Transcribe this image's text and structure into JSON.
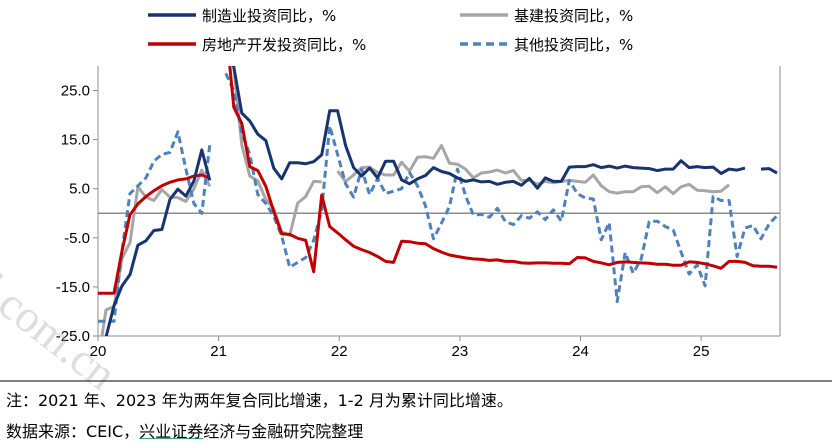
{
  "chart_data": {
    "type": "line",
    "ylim": [
      -25,
      30
    ],
    "y_ticks": [
      "25.0",
      "15.0",
      "5.0",
      "-5.0",
      "-15.0",
      "-25.0"
    ],
    "x_ticks": [
      "20",
      "21",
      "22",
      "23",
      "24",
      "25"
    ],
    "grid": false,
    "legend_position": "top",
    "series": [
      {
        "name": "制造业投资同比，%",
        "color": "#17346e",
        "style": "solid",
        "values": [
          -31.5,
          -25.2,
          -18.8,
          -14.8,
          -12.5,
          -6.5,
          -5.6,
          -3.5,
          -3.3,
          2.8,
          4.9,
          3.5,
          6.6,
          12.9,
          6.7,
          null,
          33.8,
          29.8,
          20.4,
          18.8,
          16.1,
          14.8,
          9.2,
          7.0,
          10.3,
          10.3,
          10.1,
          10.5,
          11.9,
          20.9,
          20.9,
          13.8,
          9.3,
          7.6,
          9.2,
          7.2,
          10.6,
          10.6,
          6.8,
          6.0,
          7.0,
          7.7,
          9.3,
          8.5,
          8.1,
          7.2,
          6.5,
          6.8,
          6.4,
          6.5,
          5.9,
          6.3,
          6.5,
          5.7,
          7.1,
          5.1,
          7.2,
          6.5,
          6.5,
          9.4,
          9.5,
          9.5,
          9.9,
          9.3,
          9.6,
          9.2,
          9.6,
          9.3,
          9.2,
          9.1,
          8.7,
          9.0,
          9.0,
          10.7,
          9.3,
          9.5,
          9.3,
          9.4,
          8.1,
          9.0,
          8.8,
          9.2,
          null,
          9.0,
          9.1,
          8.2
        ],
        "label": "legend.series_1"
      },
      {
        "name": "基建投资同比，%",
        "color": "#a6a6a6",
        "style": "solid",
        "values": [
          -30.3,
          -19.7,
          -19.0,
          -9.2,
          -6.0,
          5.4,
          3.3,
          2.6,
          4.8,
          3.3,
          3.2,
          2.4,
          5.0,
          8.8,
          5.5,
          null,
          33.8,
          29.8,
          13.9,
          7.6,
          6.6,
          2.8,
          1.0,
          -3.8,
          -4.5,
          2.1,
          3.4,
          6.5,
          6.4,
          null,
          8.6,
          6.5,
          7.8,
          9.3,
          9.4,
          8.3,
          7.8,
          7.8,
          10.4,
          8.6,
          11.4,
          11.5,
          11.2,
          13.8,
          10.2,
          10.0,
          9.0,
          7.2,
          8.2,
          8.4,
          8.8,
          8.2,
          8.7,
          6.7,
          6.7,
          5.9,
          6.5,
          6.2,
          6.5,
          6.7,
          6.5,
          6.3,
          7.8,
          5.6,
          4.4,
          4.1,
          4.4,
          4.4,
          5.4,
          5.5,
          4.2,
          5.4,
          4.0,
          5.4,
          5.9,
          4.7,
          4.6,
          4.4,
          4.5,
          5.8,
          null,
          null,
          null,
          null,
          null,
          null
        ],
        "label": "legend.series_2"
      },
      {
        "name": "房地产开发投资同比，%",
        "color": "#c00000",
        "style": "solid",
        "values": [
          -16.3,
          -16.3,
          -16.3,
          -7.7,
          -0.3,
          1.9,
          3.4,
          4.6,
          5.6,
          6.3,
          6.8,
          7.0,
          7.6,
          7.8,
          7.2,
          null,
          38.3,
          21.6,
          18.3,
          9.5,
          8.7,
          5.5,
          0.4,
          -4.2,
          -4.3,
          -5.1,
          -5.5,
          -11.9,
          3.7,
          -2.7,
          -4.0,
          -5.4,
          -6.7,
          -7.4,
          -8.0,
          -8.8,
          -9.8,
          -10.0,
          -5.7,
          -5.8,
          -6.1,
          -6.2,
          -7.2,
          -7.9,
          -8.5,
          -8.8,
          -9.1,
          -9.3,
          -9.4,
          -9.6,
          -9.5,
          -9.8,
          -9.8,
          -10.1,
          -10.2,
          -10.1,
          -10.1,
          -10.2,
          -10.2,
          -10.3,
          -9.0,
          -9.1,
          -9.8,
          -10.1,
          -10.5,
          -10.0,
          -9.9,
          -10.0,
          -10.1,
          -10.2,
          -10.4,
          -10.4,
          -10.6,
          -10.6,
          -9.9,
          -10.0,
          -10.3,
          -10.7,
          -11.2,
          -9.8,
          -9.8,
          -10.0,
          -10.7,
          -10.8,
          -10.8,
          -11.0
        ],
        "label": "legend.series_3"
      },
      {
        "name": "其他投资同比，%",
        "color": "#4f81bd",
        "style": "dashed",
        "values": [
          -22.0,
          -22.0,
          -22.0,
          -7.6,
          4.0,
          5.6,
          7.2,
          10.6,
          12.0,
          12.4,
          16.6,
          9.0,
          2.0,
          0.0,
          14.0,
          null,
          28.5,
          25.0,
          16.3,
          12.0,
          3.8,
          2.0,
          -0.6,
          -4.6,
          -11.0,
          -10.0,
          -9.0,
          -5.5,
          0.7,
          17.8,
          12.0,
          6.0,
          3.3,
          9.0,
          3.8,
          7.1,
          4.0,
          4.5,
          5.0,
          8.3,
          5.6,
          1.5,
          -5.2,
          -2.0,
          1.4,
          9.0,
          3.6,
          -0.4,
          -0.2,
          -0.8,
          1.0,
          -1.7,
          -2.3,
          -0.5,
          -1.0,
          0.3,
          -1.3,
          0.7,
          -1.6,
          6.7,
          4.0,
          3.1,
          2.9,
          -5.4,
          -1.9,
          -18.0,
          -8.0,
          -12.2,
          -9.3,
          -1.7,
          -1.6,
          -2.7,
          -3.4,
          -7.9,
          -12.4,
          -10.5,
          -14.8,
          3.4,
          2.6,
          2.6,
          -8.8,
          -3.0,
          -2.5,
          -5.2,
          -2.2,
          -0.5
        ],
        "label": "legend.series_4"
      }
    ]
  },
  "legend": {
    "series_1": "制造业投资同比，%",
    "series_2": "基建投资同比，%",
    "series_3": "房地产开发投资同比，%",
    "series_4": "其他投资同比，%"
  },
  "notes": {
    "line1": "注：2021 年、2023 年为两年复合同比增速，1-2 月为累计同比增速。",
    "line2_prefix": "数据来源：CEIC，",
    "line2_underlined": "兴业证券",
    "line2_suffix": "经济与金融研究院整理"
  },
  "watermark": "d.com.cn"
}
